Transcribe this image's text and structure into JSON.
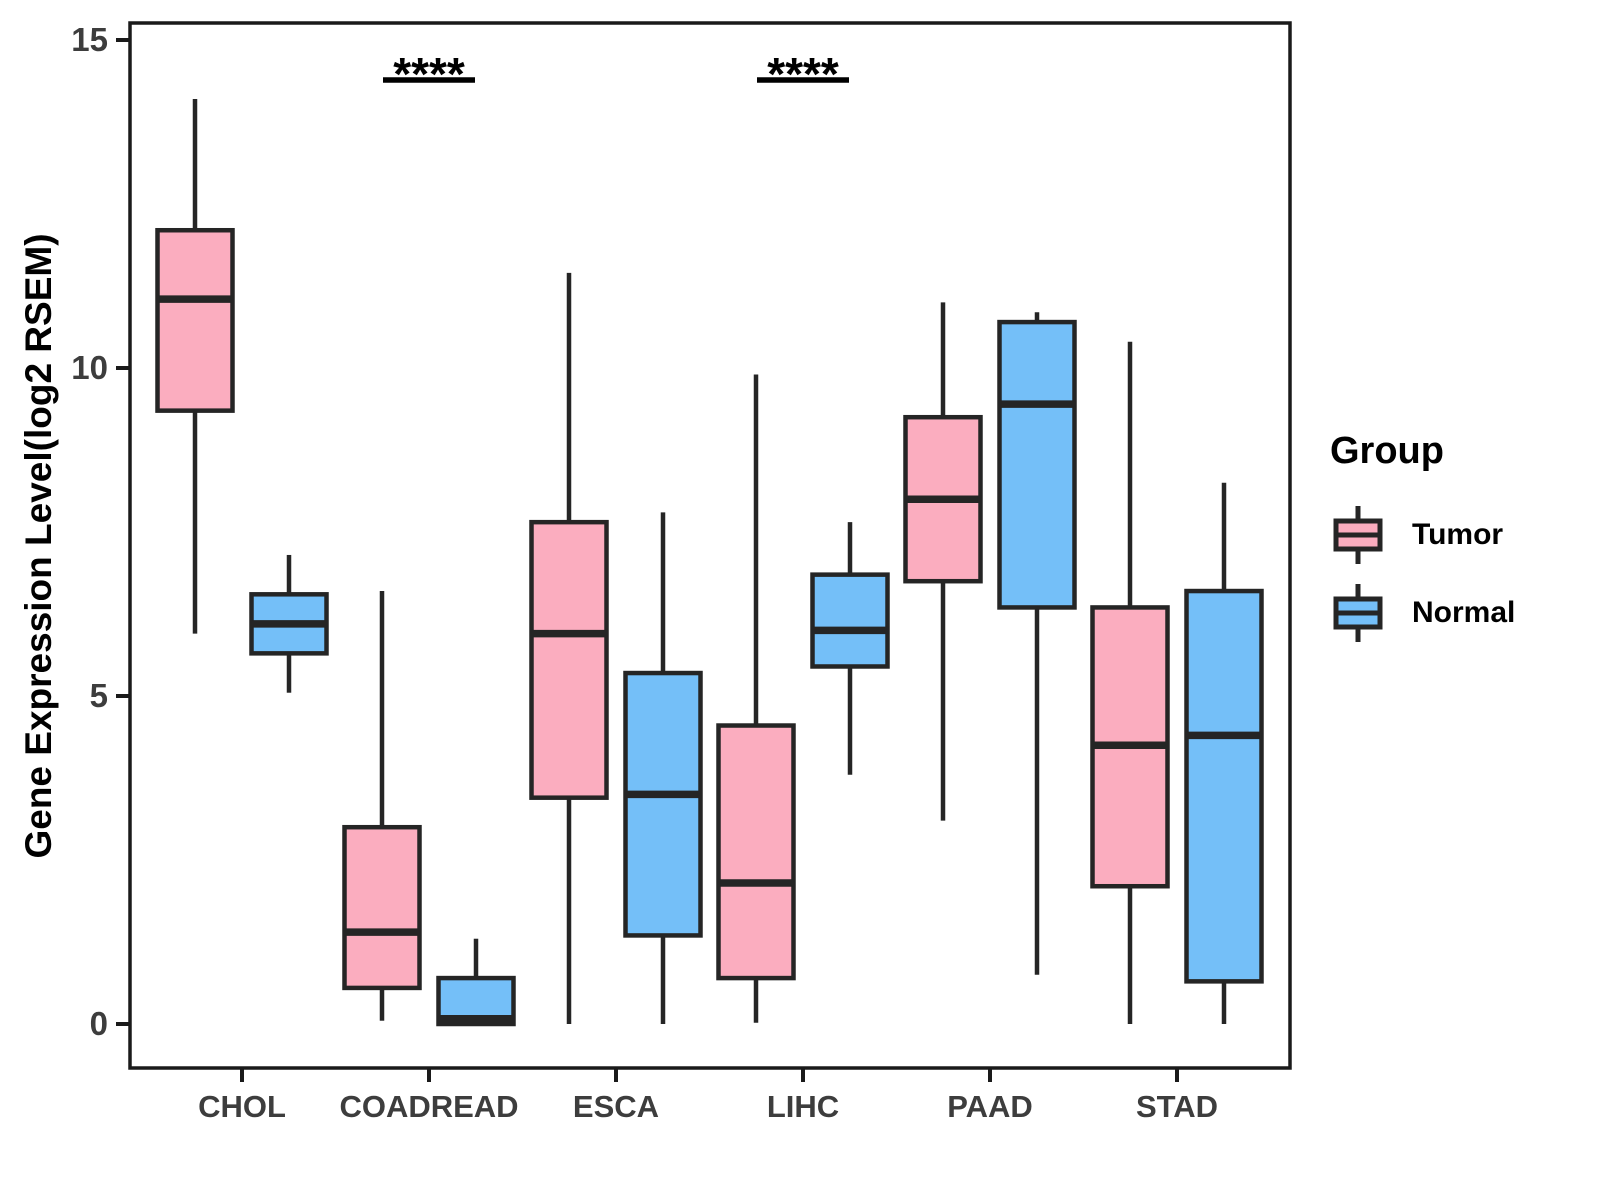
{
  "chart_data": {
    "type": "boxplot",
    "title": "",
    "xlabel": "",
    "ylabel": "Gene Expression Level(log2 RSEM)",
    "ylim": [
      0,
      15
    ],
    "yticks": [
      0,
      5,
      10,
      15
    ],
    "grid": "off",
    "categories": [
      "CHOL",
      "COADREAD",
      "ESCA",
      "LIHC",
      "PAAD",
      "STAD"
    ],
    "legend": {
      "title": "Group",
      "position": "right"
    },
    "series": [
      {
        "name": "Tumor",
        "color": "#FBADBF",
        "boxes": [
          {
            "low": 5.95,
            "q1": 9.35,
            "median": 11.05,
            "q3": 12.1,
            "high": 14.1
          },
          {
            "low": 0.05,
            "q1": 0.55,
            "median": 1.4,
            "q3": 3.0,
            "high": 6.6
          },
          {
            "low": 0.0,
            "q1": 3.45,
            "median": 5.95,
            "q3": 7.65,
            "high": 11.45
          },
          {
            "low": 0.02,
            "q1": 0.7,
            "median": 2.15,
            "q3": 4.55,
            "high": 9.9
          },
          {
            "low": 3.1,
            "q1": 6.75,
            "median": 8.0,
            "q3": 9.25,
            "high": 11.0
          },
          {
            "low": 0.0,
            "q1": 2.1,
            "median": 4.25,
            "q3": 6.35,
            "high": 10.4
          }
        ]
      },
      {
        "name": "Normal",
        "color": "#74BFF8",
        "boxes": [
          {
            "low": 5.05,
            "q1": 5.65,
            "median": 6.1,
            "q3": 6.55,
            "high": 7.15
          },
          {
            "low": 0.0,
            "q1": 0.0,
            "median": 0.08,
            "q3": 0.7,
            "high": 1.3
          },
          {
            "low": 0.0,
            "q1": 1.35,
            "median": 3.5,
            "q3": 5.35,
            "high": 7.8
          },
          {
            "low": 3.8,
            "q1": 5.45,
            "median": 6.0,
            "q3": 6.85,
            "high": 7.65
          },
          {
            "low": 0.75,
            "q1": 6.35,
            "median": 9.45,
            "q3": 10.7,
            "high": 10.85
          },
          {
            "low": 0.0,
            "q1": 0.65,
            "median": 4.4,
            "q3": 6.6,
            "high": 8.25
          }
        ]
      }
    ],
    "annotations": [
      {
        "category": "COADREAD",
        "text": "****"
      },
      {
        "category": "LIHC",
        "text": "****"
      }
    ],
    "style_colors": {
      "box_outline": "#252525",
      "panel_border": "#1a1a1a",
      "tick_label": "#3d3d3d",
      "annotation": "#000000"
    }
  }
}
